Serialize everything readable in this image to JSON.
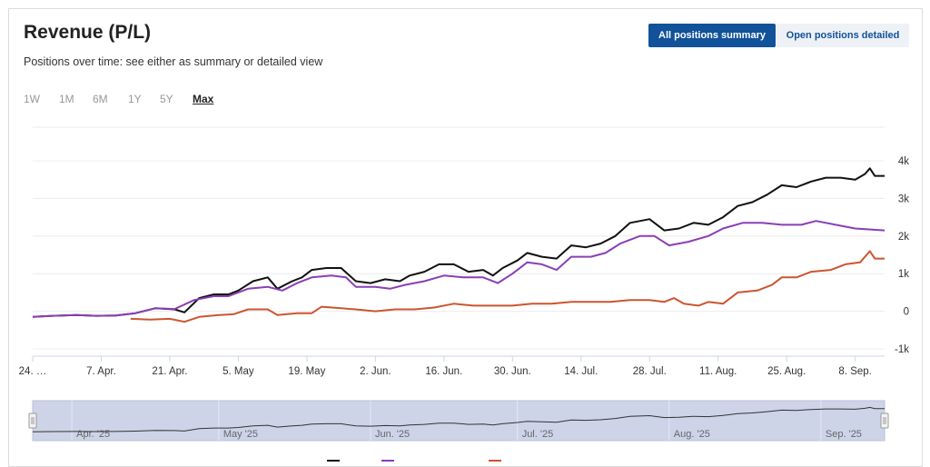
{
  "header": {
    "title": "Revenue (P/L)",
    "subtitle": "Positions over time: see either as summary or detailed view",
    "toggle_summary": "All positions summary",
    "toggle_detailed": "Open positions detailed"
  },
  "ranges": [
    "1W",
    "1M",
    "6M",
    "1Y",
    "5Y",
    "Max"
  ],
  "selected_range": "Max",
  "colors": {
    "accent": "#11529a",
    "black_series": "#111111",
    "purple_series": "#8a3fb5",
    "orange_series": "#cc5530"
  },
  "navigator": {
    "labels": [
      "Apr. '25",
      "May '25",
      "Jun. '25",
      "Jul. '25",
      "Aug. '25",
      "Sep. '25"
    ]
  },
  "chart_data": {
    "type": "line",
    "x_ticks": [
      "24. …",
      "7. Apr.",
      "21. Apr.",
      "5. May",
      "19. May",
      "2. Jun.",
      "16. Jun.",
      "30. Jun.",
      "14. Jul.",
      "28. Jul.",
      "11. Aug.",
      "25. Aug.",
      "8. Sep."
    ],
    "y_ticks": [
      "4k",
      "3k",
      "2k",
      "1k",
      "0",
      "-1k"
    ],
    "ylim": [
      -1000,
      4000
    ],
    "grid": true,
    "x_range": [
      "2025-03-24",
      "2025-09-14"
    ],
    "series": [
      {
        "color": "#111111",
        "points": [
          [
            "2025-03-24",
            -150
          ],
          [
            "2025-03-28",
            -120
          ],
          [
            "2025-04-02",
            -100
          ],
          [
            "2025-04-06",
            -120
          ],
          [
            "2025-04-10",
            -110
          ],
          [
            "2025-04-14",
            -50
          ],
          [
            "2025-04-18",
            80
          ],
          [
            "2025-04-22",
            50
          ],
          [
            "2025-04-24",
            -30
          ],
          [
            "2025-04-27",
            350
          ],
          [
            "2025-04-30",
            450
          ],
          [
            "2025-05-03",
            450
          ],
          [
            "2025-05-05",
            550
          ],
          [
            "2025-05-08",
            800
          ],
          [
            "2025-05-11",
            900
          ],
          [
            "2025-05-13",
            600
          ],
          [
            "2025-05-16",
            800
          ],
          [
            "2025-05-18",
            900
          ],
          [
            "2025-05-20",
            1100
          ],
          [
            "2025-05-23",
            1150
          ],
          [
            "2025-05-26",
            1150
          ],
          [
            "2025-05-29",
            800
          ],
          [
            "2025-06-01",
            750
          ],
          [
            "2025-06-04",
            850
          ],
          [
            "2025-06-07",
            800
          ],
          [
            "2025-06-09",
            950
          ],
          [
            "2025-06-12",
            1050
          ],
          [
            "2025-06-15",
            1250
          ],
          [
            "2025-06-18",
            1250
          ],
          [
            "2025-06-21",
            1050
          ],
          [
            "2025-06-24",
            1100
          ],
          [
            "2025-06-26",
            950
          ],
          [
            "2025-06-28",
            1150
          ],
          [
            "2025-07-01",
            1350
          ],
          [
            "2025-07-03",
            1550
          ],
          [
            "2025-07-06",
            1450
          ],
          [
            "2025-07-09",
            1400
          ],
          [
            "2025-07-12",
            1750
          ],
          [
            "2025-07-15",
            1700
          ],
          [
            "2025-07-18",
            1800
          ],
          [
            "2025-07-21",
            2000
          ],
          [
            "2025-07-24",
            2350
          ],
          [
            "2025-07-28",
            2450
          ],
          [
            "2025-07-31",
            2150
          ],
          [
            "2025-08-03",
            2200
          ],
          [
            "2025-08-06",
            2350
          ],
          [
            "2025-08-09",
            2300
          ],
          [
            "2025-08-12",
            2500
          ],
          [
            "2025-08-15",
            2800
          ],
          [
            "2025-08-18",
            2900
          ],
          [
            "2025-08-21",
            3100
          ],
          [
            "2025-08-24",
            3350
          ],
          [
            "2025-08-27",
            3300
          ],
          [
            "2025-08-30",
            3450
          ],
          [
            "2025-09-02",
            3550
          ],
          [
            "2025-09-05",
            3550
          ],
          [
            "2025-09-08",
            3500
          ],
          [
            "2025-09-10",
            3650
          ],
          [
            "2025-09-11",
            3800
          ],
          [
            "2025-09-12",
            3600
          ],
          [
            "2025-09-14",
            3600
          ]
        ]
      },
      {
        "color": "#8a3fb5",
        "points": [
          [
            "2025-03-24",
            -150
          ],
          [
            "2025-03-28",
            -120
          ],
          [
            "2025-04-02",
            -100
          ],
          [
            "2025-04-06",
            -120
          ],
          [
            "2025-04-10",
            -110
          ],
          [
            "2025-04-14",
            -50
          ],
          [
            "2025-04-18",
            80
          ],
          [
            "2025-04-22",
            60
          ],
          [
            "2025-04-26",
            300
          ],
          [
            "2025-04-30",
            400
          ],
          [
            "2025-05-03",
            400
          ],
          [
            "2025-05-07",
            600
          ],
          [
            "2025-05-11",
            650
          ],
          [
            "2025-05-14",
            550
          ],
          [
            "2025-05-17",
            750
          ],
          [
            "2025-05-20",
            900
          ],
          [
            "2025-05-24",
            950
          ],
          [
            "2025-05-27",
            900
          ],
          [
            "2025-05-29",
            650
          ],
          [
            "2025-06-02",
            650
          ],
          [
            "2025-06-05",
            600
          ],
          [
            "2025-06-08",
            700
          ],
          [
            "2025-06-12",
            800
          ],
          [
            "2025-06-16",
            950
          ],
          [
            "2025-06-20",
            900
          ],
          [
            "2025-06-24",
            900
          ],
          [
            "2025-06-27",
            750
          ],
          [
            "2025-06-30",
            1000
          ],
          [
            "2025-07-03",
            1300
          ],
          [
            "2025-07-06",
            1250
          ],
          [
            "2025-07-09",
            1100
          ],
          [
            "2025-07-12",
            1450
          ],
          [
            "2025-07-16",
            1450
          ],
          [
            "2025-07-19",
            1550
          ],
          [
            "2025-07-22",
            1800
          ],
          [
            "2025-07-26",
            2000
          ],
          [
            "2025-07-29",
            2000
          ],
          [
            "2025-08-01",
            1750
          ],
          [
            "2025-08-05",
            1850
          ],
          [
            "2025-08-09",
            2000
          ],
          [
            "2025-08-12",
            2200
          ],
          [
            "2025-08-16",
            2350
          ],
          [
            "2025-08-20",
            2350
          ],
          [
            "2025-08-24",
            2300
          ],
          [
            "2025-08-28",
            2300
          ],
          [
            "2025-08-31",
            2400
          ],
          [
            "2025-09-04",
            2300
          ],
          [
            "2025-09-08",
            2200
          ],
          [
            "2025-09-14",
            2150
          ]
        ]
      },
      {
        "color": "#cc5530",
        "points": [
          [
            "2025-04-13",
            -200
          ],
          [
            "2025-04-17",
            -220
          ],
          [
            "2025-04-21",
            -200
          ],
          [
            "2025-04-24",
            -280
          ],
          [
            "2025-04-27",
            -150
          ],
          [
            "2025-05-01",
            -100
          ],
          [
            "2025-05-04",
            -80
          ],
          [
            "2025-05-07",
            50
          ],
          [
            "2025-05-11",
            50
          ],
          [
            "2025-05-13",
            -100
          ],
          [
            "2025-05-17",
            -50
          ],
          [
            "2025-05-20",
            -50
          ],
          [
            "2025-05-22",
            120
          ],
          [
            "2025-05-26",
            80
          ],
          [
            "2025-05-29",
            50
          ],
          [
            "2025-06-02",
            0
          ],
          [
            "2025-06-06",
            50
          ],
          [
            "2025-06-10",
            50
          ],
          [
            "2025-06-14",
            100
          ],
          [
            "2025-06-18",
            200
          ],
          [
            "2025-06-22",
            150
          ],
          [
            "2025-06-26",
            150
          ],
          [
            "2025-06-30",
            150
          ],
          [
            "2025-07-04",
            200
          ],
          [
            "2025-07-08",
            200
          ],
          [
            "2025-07-12",
            250
          ],
          [
            "2025-07-16",
            250
          ],
          [
            "2025-07-20",
            250
          ],
          [
            "2025-07-24",
            300
          ],
          [
            "2025-07-28",
            300
          ],
          [
            "2025-07-31",
            250
          ],
          [
            "2025-08-02",
            350
          ],
          [
            "2025-08-04",
            200
          ],
          [
            "2025-08-07",
            150
          ],
          [
            "2025-08-09",
            250
          ],
          [
            "2025-08-12",
            200
          ],
          [
            "2025-08-15",
            500
          ],
          [
            "2025-08-19",
            550
          ],
          [
            "2025-08-22",
            700
          ],
          [
            "2025-08-24",
            900
          ],
          [
            "2025-08-27",
            900
          ],
          [
            "2025-08-30",
            1050
          ],
          [
            "2025-09-03",
            1100
          ],
          [
            "2025-09-06",
            1250
          ],
          [
            "2025-09-09",
            1300
          ],
          [
            "2025-09-11",
            1600
          ],
          [
            "2025-09-12",
            1400
          ],
          [
            "2025-09-14",
            1400
          ]
        ]
      }
    ]
  }
}
